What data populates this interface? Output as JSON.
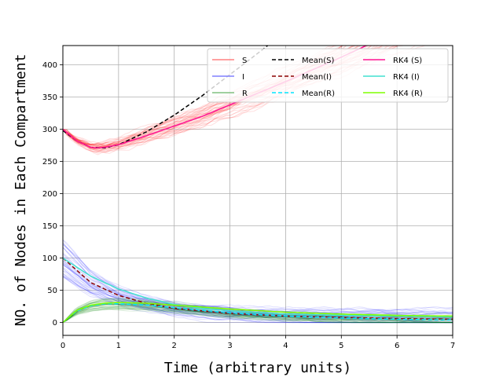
{
  "chart_data": {
    "type": "line",
    "title": "",
    "xlabel": "Time (arbitrary units)",
    "ylabel": "NO. of Nodes in Each Compartment",
    "xlim": [
      0,
      7
    ],
    "ylim": [
      -20,
      430
    ],
    "xticks": [
      0,
      1,
      2,
      3,
      4,
      5,
      6,
      7
    ],
    "yticks": [
      0,
      50,
      100,
      150,
      200,
      250,
      300,
      350,
      400
    ],
    "grid": true,
    "legend": {
      "placement": "top-right",
      "columns": 3,
      "entries": [
        {
          "label": "S",
          "color": "#ff8080",
          "style": "solid"
        },
        {
          "label": "I",
          "color": "#8080ff",
          "style": "solid"
        },
        {
          "label": "R",
          "color": "#80c080",
          "style": "solid"
        },
        {
          "label": "Mean(S)",
          "color": "#000000",
          "style": "dashed"
        },
        {
          "label": "Mean(I)",
          "color": "#8b0000",
          "style": "dashed"
        },
        {
          "label": "Mean(R)",
          "color": "#00e5ff",
          "style": "dashed"
        },
        {
          "label": "RK4 (S)",
          "color": "#ff1493",
          "style": "solid"
        },
        {
          "label": "RK4 (I)",
          "color": "#40e0d0",
          "style": "solid"
        },
        {
          "label": "RK4 (R)",
          "color": "#7fff00",
          "style": "solid"
        }
      ]
    },
    "stochastic_runs": {
      "count_per_compartment": 40,
      "S": {
        "color": "#ff0000",
        "opacity": 0.12
      },
      "I": {
        "color": "#0000ff",
        "opacity": 0.12
      },
      "R": {
        "color": "#008000",
        "opacity": 0.12
      }
    },
    "series": [
      {
        "name": "Mean(S)",
        "color": "#000000",
        "style": "dashed",
        "x": [
          0,
          0.25,
          0.5,
          0.75,
          1,
          1.5,
          2,
          2.5,
          3,
          3.5,
          3.75
        ],
        "y": [
          298,
          282,
          272,
          271,
          276,
          296,
          322,
          352,
          385,
          418,
          435
        ]
      },
      {
        "name": "Mean(I)",
        "color": "#8b0000",
        "style": "dashed",
        "x": [
          0,
          0.5,
          1,
          1.5,
          2,
          3,
          4,
          5,
          6,
          7
        ],
        "y": [
          100,
          62,
          42,
          30,
          22,
          14,
          10,
          8,
          6,
          5
        ]
      },
      {
        "name": "Mean(R)",
        "color": "#00e5ff",
        "style": "dashed",
        "x": [
          0,
          0.25,
          0.5,
          0.75,
          1,
          1.5,
          2,
          3,
          4,
          5,
          6,
          7
        ],
        "y": [
          0,
          18,
          26,
          29,
          29,
          27,
          23,
          15,
          10,
          7,
          5,
          4
        ]
      },
      {
        "name": "RK4 (S)",
        "color": "#ff1493",
        "style": "solid",
        "x": [
          0,
          0.25,
          0.5,
          0.6,
          0.75,
          1,
          1.5,
          2,
          2.5,
          3,
          3.5,
          4,
          4.5,
          5,
          5.5
        ],
        "y": [
          300,
          282,
          272,
          271,
          272,
          276,
          290,
          305,
          320,
          338,
          356,
          374,
          393,
          412,
          432
        ]
      },
      {
        "name": "RK4 (I)",
        "color": "#40e0d0",
        "style": "solid",
        "x": [
          0,
          0.5,
          1,
          1.5,
          2,
          2.5,
          3,
          4,
          5,
          6,
          7
        ],
        "y": [
          100,
          72,
          52,
          38,
          28,
          22,
          18,
          13,
          11,
          10,
          9
        ]
      },
      {
        "name": "RK4 (R)",
        "color": "#7fff00",
        "style": "solid",
        "x": [
          0,
          0.25,
          0.5,
          0.75,
          1,
          1.5,
          2,
          3,
          4,
          5,
          6,
          7
        ],
        "y": [
          0,
          19,
          27,
          30,
          31,
          30,
          27,
          21,
          16,
          13,
          11,
          10
        ]
      }
    ]
  }
}
